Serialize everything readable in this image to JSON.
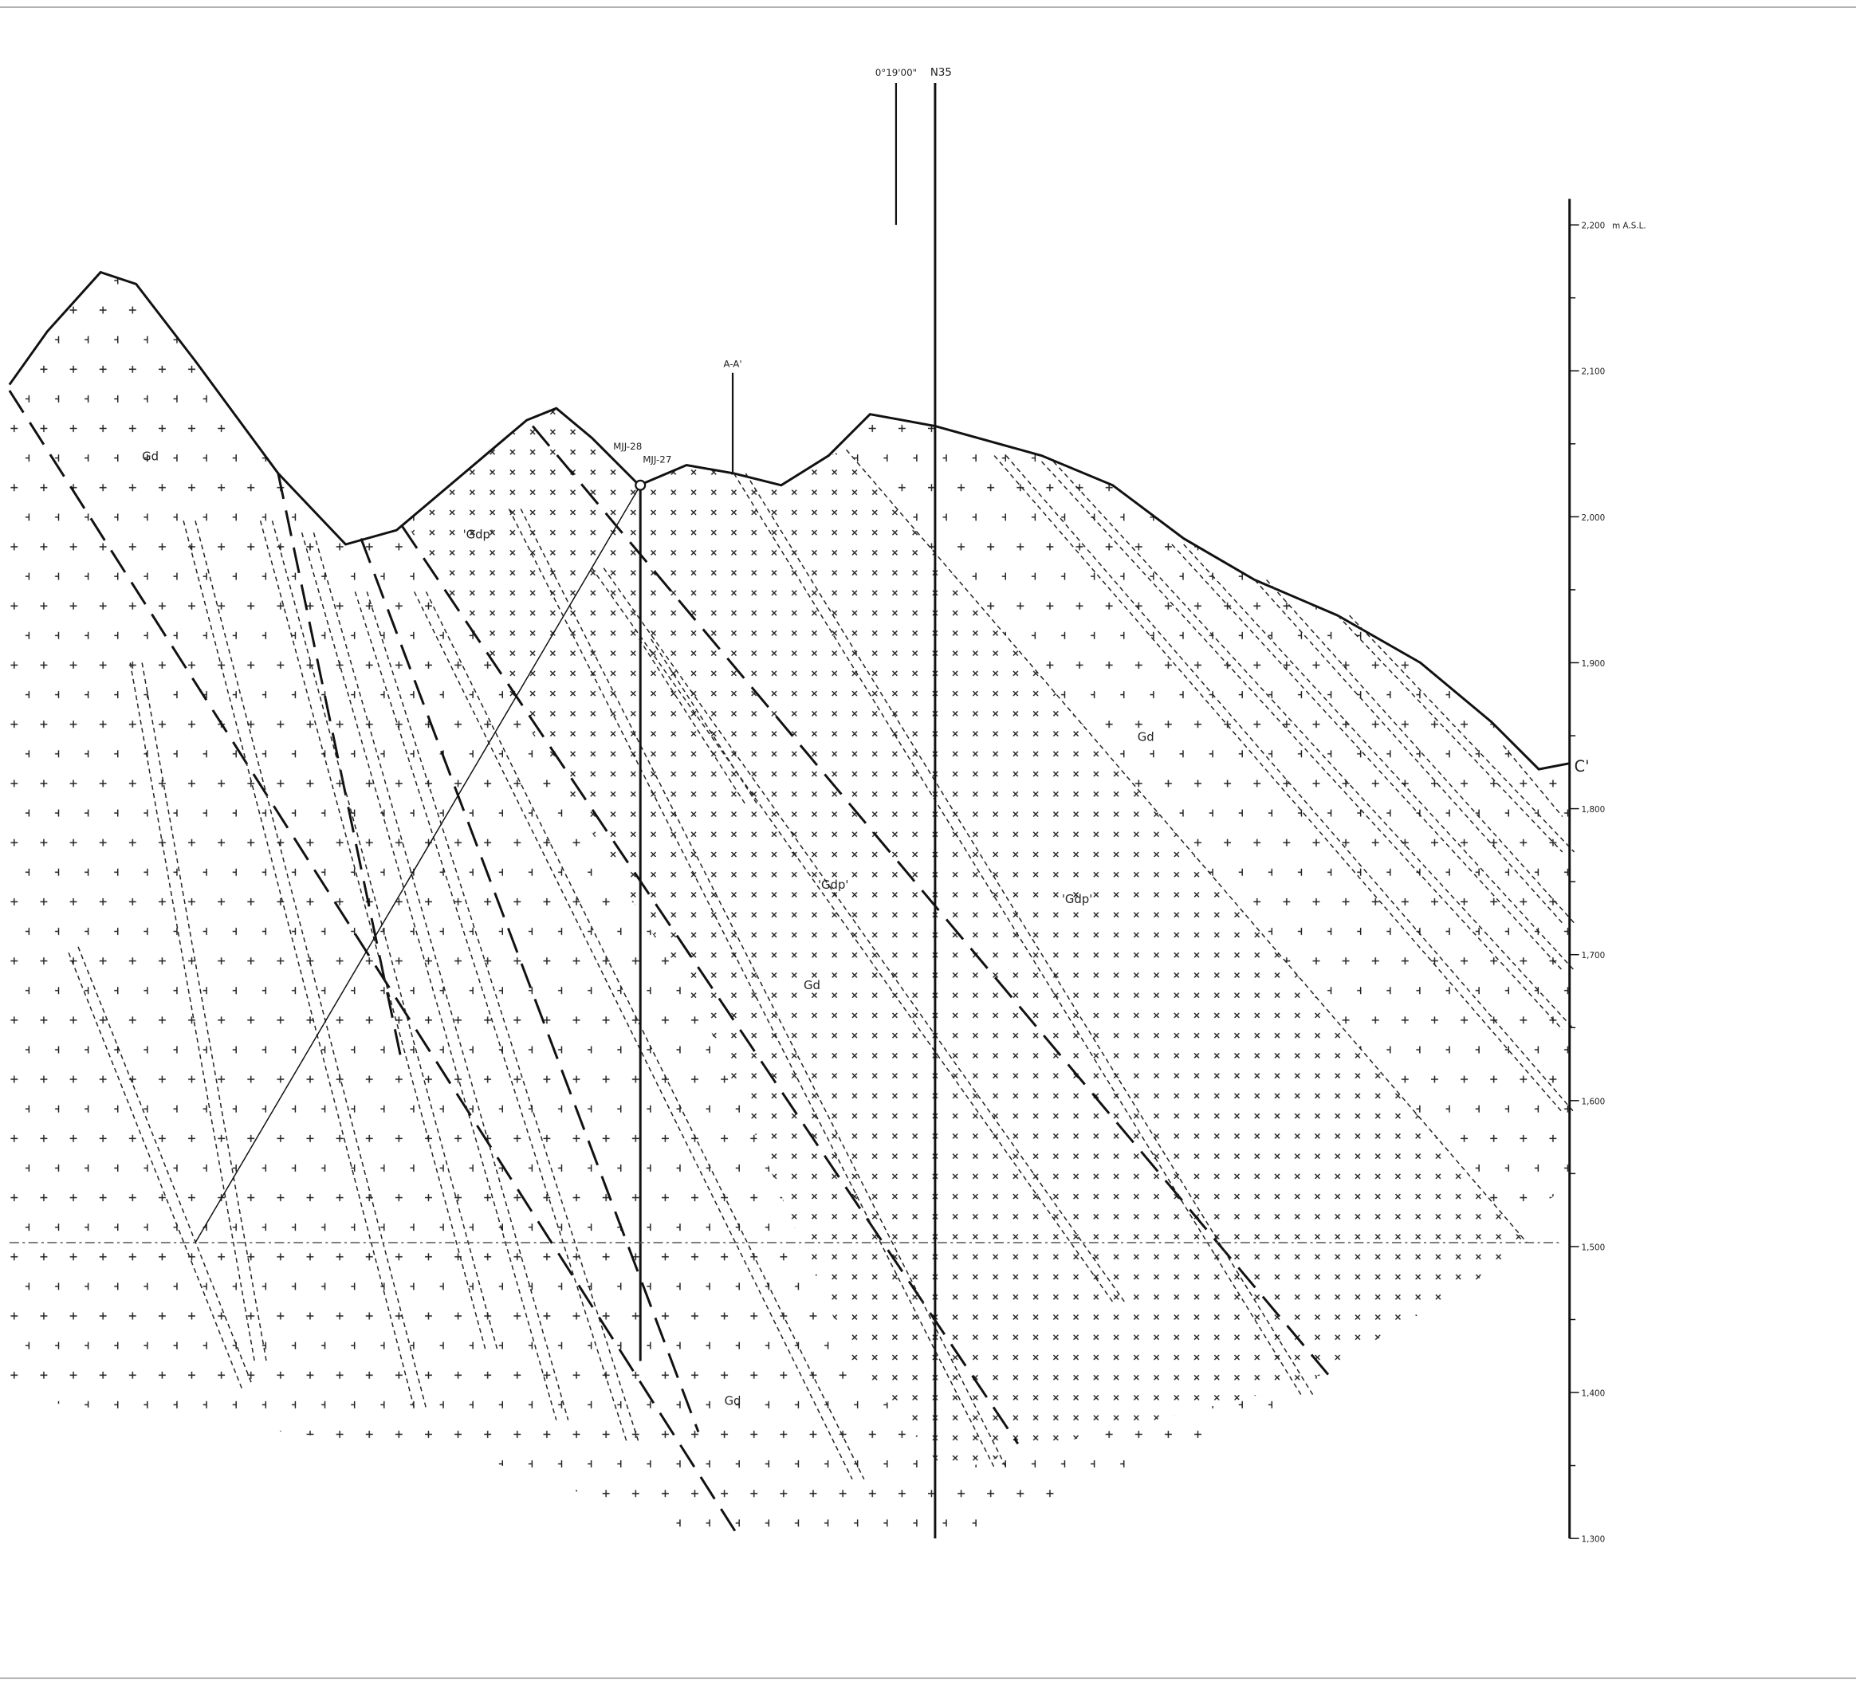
{
  "header": {
    "meridian": "0°19'00\"",
    "grid_line": "N35"
  },
  "section": {
    "label": "A-A'",
    "end_label": "C'"
  },
  "drillholes": [
    "MJJ-28",
    "MJJ-27"
  ],
  "units": [
    "Gd",
    "Gd",
    "Gd",
    "Gd",
    "'Gdp'",
    "'Gdp'",
    "'Gdp'"
  ],
  "elevation_axis": {
    "unit": "m A.S.L.",
    "ticks": [
      "2,200",
      "2,100",
      "2,000",
      "1,900",
      "1,800",
      "1,700",
      "1,600",
      "1,500",
      "1,400",
      "1,300"
    ]
  }
}
